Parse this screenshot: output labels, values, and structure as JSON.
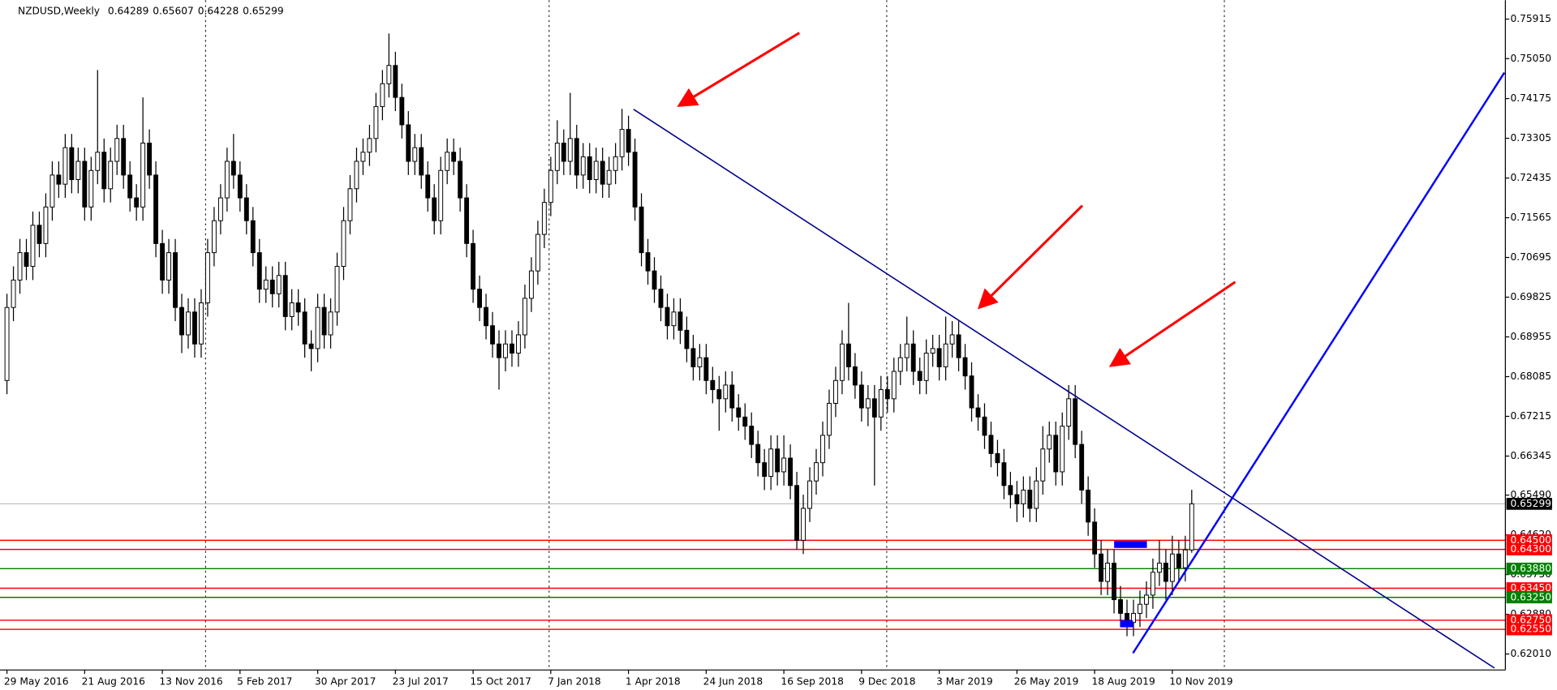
{
  "chart_data": {
    "type": "candlestick",
    "symbol": "NZDUSD,Weekly",
    "categories": [
      "29 May 2016",
      null,
      null,
      null,
      null,
      null,
      null,
      null,
      null,
      null,
      null,
      null,
      "21 Aug 2016",
      null,
      null,
      null,
      null,
      null,
      null,
      null,
      null,
      null,
      null,
      null,
      "13 Nov 2016",
      null,
      null,
      null,
      null,
      null,
      null,
      null,
      null,
      null,
      null,
      null,
      "5 Feb 2017",
      null,
      null,
      null,
      null,
      null,
      null,
      null,
      null,
      null,
      null,
      null,
      "30 Apr 2017",
      null,
      null,
      null,
      null,
      null,
      null,
      null,
      null,
      null,
      null,
      null,
      "23 Jul 2017",
      null,
      null,
      null,
      null,
      null,
      null,
      null,
      null,
      null,
      null,
      null,
      "15 Oct 2017",
      null,
      null,
      null,
      null,
      null,
      null,
      null,
      null,
      null,
      null,
      null,
      "7 Jan 2018",
      null,
      null,
      null,
      null,
      null,
      null,
      null,
      null,
      null,
      null,
      null,
      "1 Apr 2018",
      null,
      null,
      null,
      null,
      null,
      null,
      null,
      null,
      null,
      null,
      null,
      "24 Jun 2018",
      null,
      null,
      null,
      null,
      null,
      null,
      null,
      null,
      null,
      null,
      null,
      "16 Sep 2018",
      null,
      null,
      null,
      null,
      null,
      null,
      null,
      null,
      null,
      null,
      null,
      "9 Dec 2018",
      null,
      null,
      null,
      null,
      null,
      null,
      null,
      null,
      null,
      null,
      null,
      "3 Mar 2019",
      null,
      null,
      null,
      null,
      null,
      null,
      null,
      null,
      null,
      null,
      null,
      "26 May 2019",
      null,
      null,
      null,
      null,
      null,
      null,
      null,
      null,
      null,
      null,
      null,
      "18 Aug 2019",
      null,
      null,
      null,
      null,
      null,
      null,
      null,
      null,
      null,
      null,
      null,
      "10 Nov 2019",
      null,
      null,
      null
    ],
    "ohlc": [
      [
        0.68,
        0.699,
        0.677,
        0.696
      ],
      [
        0.696,
        0.705,
        0.693,
        0.702
      ],
      [
        0.702,
        0.711,
        0.699,
        0.708
      ],
      [
        0.708,
        0.711,
        0.702,
        0.705
      ],
      [
        0.705,
        0.717,
        0.702,
        0.714
      ],
      [
        0.714,
        0.717,
        0.707,
        0.71
      ],
      [
        0.71,
        0.721,
        0.707,
        0.718
      ],
      [
        0.718,
        0.728,
        0.715,
        0.725
      ],
      [
        0.725,
        0.728,
        0.72,
        0.723
      ],
      [
        0.723,
        0.734,
        0.72,
        0.731
      ],
      [
        0.731,
        0.734,
        0.721,
        0.724
      ],
      [
        0.724,
        0.731,
        0.721,
        0.728
      ],
      [
        0.728,
        0.731,
        0.715,
        0.718
      ],
      [
        0.718,
        0.729,
        0.715,
        0.726
      ],
      [
        0.726,
        0.748,
        0.723,
        0.73
      ],
      [
        0.73,
        0.733,
        0.719,
        0.722
      ],
      [
        0.722,
        0.731,
        0.719,
        0.728
      ],
      [
        0.728,
        0.736,
        0.725,
        0.733
      ],
      [
        0.733,
        0.736,
        0.722,
        0.725
      ],
      [
        0.725,
        0.728,
        0.717,
        0.72
      ],
      [
        0.72,
        0.723,
        0.715,
        0.718
      ],
      [
        0.718,
        0.742,
        0.715,
        0.732
      ],
      [
        0.732,
        0.735,
        0.722,
        0.725
      ],
      [
        0.725,
        0.728,
        0.707,
        0.71
      ],
      [
        0.71,
        0.713,
        0.699,
        0.702
      ],
      [
        0.702,
        0.711,
        0.699,
        0.708
      ],
      [
        0.708,
        0.711,
        0.693,
        0.696
      ],
      [
        0.696,
        0.699,
        0.686,
        0.69
      ],
      [
        0.69,
        0.698,
        0.687,
        0.695
      ],
      [
        0.695,
        0.698,
        0.685,
        0.688
      ],
      [
        0.688,
        0.7,
        0.685,
        0.697
      ],
      [
        0.697,
        0.711,
        0.694,
        0.708
      ],
      [
        0.708,
        0.718,
        0.705,
        0.715
      ],
      [
        0.715,
        0.723,
        0.712,
        0.72
      ],
      [
        0.72,
        0.731,
        0.717,
        0.728
      ],
      [
        0.728,
        0.734,
        0.722,
        0.725
      ],
      [
        0.725,
        0.728,
        0.717,
        0.72
      ],
      [
        0.72,
        0.723,
        0.712,
        0.715
      ],
      [
        0.715,
        0.718,
        0.705,
        0.708
      ],
      [
        0.708,
        0.711,
        0.697,
        0.7
      ],
      [
        0.7,
        0.705,
        0.697,
        0.702
      ],
      [
        0.702,
        0.705,
        0.696,
        0.699
      ],
      [
        0.699,
        0.706,
        0.696,
        0.703
      ],
      [
        0.703,
        0.706,
        0.691,
        0.694
      ],
      [
        0.694,
        0.7,
        0.691,
        0.697
      ],
      [
        0.697,
        0.7,
        0.692,
        0.695
      ],
      [
        0.695,
        0.698,
        0.685,
        0.688
      ],
      [
        0.688,
        0.691,
        0.682,
        0.687
      ],
      [
        0.687,
        0.699,
        0.684,
        0.696
      ],
      [
        0.696,
        0.699,
        0.687,
        0.69
      ],
      [
        0.69,
        0.698,
        0.687,
        0.695
      ],
      [
        0.695,
        0.708,
        0.692,
        0.705
      ],
      [
        0.705,
        0.718,
        0.702,
        0.715
      ],
      [
        0.715,
        0.725,
        0.712,
        0.722
      ],
      [
        0.722,
        0.731,
        0.719,
        0.728
      ],
      [
        0.728,
        0.733,
        0.725,
        0.73
      ],
      [
        0.73,
        0.736,
        0.727,
        0.733
      ],
      [
        0.733,
        0.743,
        0.73,
        0.74
      ],
      [
        0.74,
        0.748,
        0.737,
        0.745
      ],
      [
        0.745,
        0.756,
        0.742,
        0.749
      ],
      [
        0.749,
        0.752,
        0.739,
        0.742
      ],
      [
        0.742,
        0.745,
        0.733,
        0.736
      ],
      [
        0.736,
        0.739,
        0.725,
        0.728
      ],
      [
        0.728,
        0.734,
        0.725,
        0.731
      ],
      [
        0.731,
        0.734,
        0.722,
        0.725
      ],
      [
        0.725,
        0.728,
        0.717,
        0.72
      ],
      [
        0.72,
        0.723,
        0.712,
        0.715
      ],
      [
        0.715,
        0.729,
        0.712,
        0.726
      ],
      [
        0.726,
        0.733,
        0.723,
        0.73
      ],
      [
        0.73,
        0.733,
        0.725,
        0.728
      ],
      [
        0.728,
        0.731,
        0.717,
        0.72
      ],
      [
        0.72,
        0.723,
        0.707,
        0.71
      ],
      [
        0.71,
        0.713,
        0.697,
        0.7
      ],
      [
        0.7,
        0.703,
        0.693,
        0.696
      ],
      [
        0.696,
        0.699,
        0.689,
        0.692
      ],
      [
        0.692,
        0.695,
        0.685,
        0.688
      ],
      [
        0.688,
        0.691,
        0.678,
        0.685
      ],
      [
        0.685,
        0.691,
        0.682,
        0.688
      ],
      [
        0.688,
        0.691,
        0.683,
        0.686
      ],
      [
        0.686,
        0.693,
        0.683,
        0.69
      ],
      [
        0.69,
        0.701,
        0.687,
        0.698
      ],
      [
        0.698,
        0.707,
        0.695,
        0.704
      ],
      [
        0.704,
        0.715,
        0.701,
        0.712
      ],
      [
        0.712,
        0.722,
        0.709,
        0.719
      ],
      [
        0.719,
        0.729,
        0.716,
        0.726
      ],
      [
        0.726,
        0.737,
        0.723,
        0.732
      ],
      [
        0.732,
        0.735,
        0.725,
        0.728
      ],
      [
        0.728,
        0.743,
        0.725,
        0.733
      ],
      [
        0.733,
        0.736,
        0.722,
        0.725
      ],
      [
        0.725,
        0.732,
        0.722,
        0.729
      ],
      [
        0.729,
        0.732,
        0.721,
        0.724
      ],
      [
        0.724,
        0.731,
        0.721,
        0.728
      ],
      [
        0.728,
        0.731,
        0.72,
        0.723
      ],
      [
        0.723,
        0.729,
        0.72,
        0.726
      ],
      [
        0.726,
        0.732,
        0.723,
        0.729
      ],
      [
        0.729,
        0.7395,
        0.726,
        0.735
      ],
      [
        0.735,
        0.738,
        0.727,
        0.73
      ],
      [
        0.73,
        0.733,
        0.715,
        0.718
      ],
      [
        0.718,
        0.721,
        0.705,
        0.708
      ],
      [
        0.708,
        0.711,
        0.701,
        0.704
      ],
      [
        0.704,
        0.707,
        0.697,
        0.7
      ],
      [
        0.7,
        0.703,
        0.693,
        0.696
      ],
      [
        0.696,
        0.699,
        0.689,
        0.692
      ],
      [
        0.692,
        0.698,
        0.689,
        0.695
      ],
      [
        0.695,
        0.698,
        0.688,
        0.691
      ],
      [
        0.691,
        0.694,
        0.684,
        0.687
      ],
      [
        0.687,
        0.69,
        0.68,
        0.683
      ],
      [
        0.683,
        0.688,
        0.68,
        0.685
      ],
      [
        0.685,
        0.688,
        0.677,
        0.68
      ],
      [
        0.68,
        0.683,
        0.675,
        0.678
      ],
      [
        0.678,
        0.681,
        0.669,
        0.676
      ],
      [
        0.676,
        0.682,
        0.673,
        0.679
      ],
      [
        0.679,
        0.682,
        0.671,
        0.674
      ],
      [
        0.674,
        0.677,
        0.669,
        0.672
      ],
      [
        0.672,
        0.675,
        0.667,
        0.67
      ],
      [
        0.67,
        0.673,
        0.663,
        0.666
      ],
      [
        0.666,
        0.669,
        0.659,
        0.662
      ],
      [
        0.662,
        0.665,
        0.656,
        0.659
      ],
      [
        0.659,
        0.668,
        0.656,
        0.665
      ],
      [
        0.665,
        0.668,
        0.657,
        0.66
      ],
      [
        0.66,
        0.668,
        0.657,
        0.663
      ],
      [
        0.663,
        0.666,
        0.654,
        0.657
      ],
      [
        0.657,
        0.66,
        0.643,
        0.645
      ],
      [
        0.645,
        0.655,
        0.642,
        0.652
      ],
      [
        0.652,
        0.661,
        0.649,
        0.658
      ],
      [
        0.658,
        0.665,
        0.655,
        0.662
      ],
      [
        0.662,
        0.671,
        0.659,
        0.668
      ],
      [
        0.668,
        0.678,
        0.665,
        0.675
      ],
      [
        0.675,
        0.683,
        0.672,
        0.68
      ],
      [
        0.68,
        0.691,
        0.677,
        0.688
      ],
      [
        0.688,
        0.697,
        0.68,
        0.683
      ],
      [
        0.683,
        0.686,
        0.676,
        0.679
      ],
      [
        0.679,
        0.682,
        0.671,
        0.674
      ],
      [
        0.674,
        0.679,
        0.67,
        0.676
      ],
      [
        0.676,
        0.679,
        0.657,
        0.672
      ],
      [
        0.672,
        0.681,
        0.669,
        0.678
      ],
      [
        0.678,
        0.681,
        0.673,
        0.676
      ],
      [
        0.676,
        0.685,
        0.673,
        0.682
      ],
      [
        0.682,
        0.688,
        0.679,
        0.685
      ],
      [
        0.685,
        0.694,
        0.682,
        0.688
      ],
      [
        0.688,
        0.691,
        0.679,
        0.682
      ],
      [
        0.682,
        0.685,
        0.677,
        0.68
      ],
      [
        0.68,
        0.689,
        0.677,
        0.686
      ],
      [
        0.686,
        0.69,
        0.683,
        0.687
      ],
      [
        0.687,
        0.69,
        0.68,
        0.683
      ],
      [
        0.683,
        0.694,
        0.68,
        0.688
      ],
      [
        0.688,
        0.693,
        0.685,
        0.69
      ],
      [
        0.69,
        0.693,
        0.682,
        0.685
      ],
      [
        0.685,
        0.688,
        0.678,
        0.681
      ],
      [
        0.681,
        0.684,
        0.671,
        0.674
      ],
      [
        0.674,
        0.677,
        0.669,
        0.672
      ],
      [
        0.672,
        0.675,
        0.665,
        0.668
      ],
      [
        0.668,
        0.671,
        0.661,
        0.664
      ],
      [
        0.664,
        0.667,
        0.659,
        0.662
      ],
      [
        0.662,
        0.665,
        0.654,
        0.657
      ],
      [
        0.657,
        0.66,
        0.652,
        0.655
      ],
      [
        0.655,
        0.658,
        0.649,
        0.653
      ],
      [
        0.653,
        0.659,
        0.65,
        0.656
      ],
      [
        0.656,
        0.659,
        0.649,
        0.652
      ],
      [
        0.652,
        0.661,
        0.649,
        0.658
      ],
      [
        0.658,
        0.67,
        0.655,
        0.665
      ],
      [
        0.665,
        0.671,
        0.662,
        0.668
      ],
      [
        0.668,
        0.671,
        0.657,
        0.66
      ],
      [
        0.66,
        0.673,
        0.657,
        0.67
      ],
      [
        0.67,
        0.679,
        0.667,
        0.676
      ],
      [
        0.676,
        0.679,
        0.663,
        0.666
      ],
      [
        0.666,
        0.669,
        0.653,
        0.656
      ],
      [
        0.656,
        0.659,
        0.646,
        0.649
      ],
      [
        0.649,
        0.652,
        0.639,
        0.642
      ],
      [
        0.642,
        0.645,
        0.633,
        0.636
      ],
      [
        0.636,
        0.643,
        0.633,
        0.64
      ],
      [
        0.64,
        0.643,
        0.629,
        0.632
      ],
      [
        0.632,
        0.635,
        0.626,
        0.629
      ],
      [
        0.629,
        0.632,
        0.624,
        0.627
      ],
      [
        0.627,
        0.632,
        0.624,
        0.629
      ],
      [
        0.629,
        0.634,
        0.626,
        0.631
      ],
      [
        0.631,
        0.636,
        0.628,
        0.633
      ],
      [
        0.633,
        0.641,
        0.63,
        0.638
      ],
      [
        0.638,
        0.645,
        0.635,
        0.64
      ],
      [
        0.64,
        0.643,
        0.632,
        0.636
      ],
      [
        0.636,
        0.646,
        0.633,
        0.642
      ],
      [
        0.642,
        0.645,
        0.636,
        0.639
      ],
      [
        0.639,
        0.646,
        0.636,
        0.6429
      ],
      [
        0.64289,
        0.65607,
        0.64228,
        0.65299
      ]
    ],
    "ylim": [
      0.6166,
      0.7633
    ],
    "yticks": [
      {
        "value": 0.75915,
        "label": "0.75915"
      },
      {
        "value": 0.7505,
        "label": "0.75050"
      },
      {
        "value": 0.74175,
        "label": "0.74175"
      },
      {
        "value": 0.73305,
        "label": "0.73305"
      },
      {
        "value": 0.72435,
        "label": "0.72435"
      },
      {
        "value": 0.71565,
        "label": "0.71565"
      },
      {
        "value": 0.70695,
        "label": "0.70695"
      },
      {
        "value": 0.69825,
        "label": "0.69825"
      },
      {
        "value": 0.68955,
        "label": "0.68955"
      },
      {
        "value": 0.68085,
        "label": "0.68085"
      },
      {
        "value": 0.67215,
        "label": "0.67215"
      },
      {
        "value": 0.66345,
        "label": "0.66345"
      },
      {
        "value": 0.6549,
        "label": "0.65490"
      },
      {
        "value": 0.6462,
        "label": "0.64620"
      },
      {
        "value": 0.6375,
        "label": "0.63750"
      },
      {
        "value": 0.6288,
        "label": "0.62880"
      },
      {
        "value": 0.6201,
        "label": "0.62010"
      }
    ],
    "levels": [
      {
        "value": 0.645,
        "label": "0.64500",
        "color": "#ff0000"
      },
      {
        "value": 0.643,
        "label": "0.64300",
        "color": "#ff0000"
      },
      {
        "value": 0.6388,
        "label": "0.63880",
        "color": "#008000"
      },
      {
        "value": 0.6345,
        "label": "0.63450",
        "color": "#ff0000"
      },
      {
        "value": 0.6325,
        "label": "0.63250",
        "color": "#008000"
      },
      {
        "value": 0.6275,
        "label": "0.62750",
        "color": "#ff0000"
      },
      {
        "value": 0.6255,
        "label": "0.62550",
        "color": "#ff0000"
      }
    ],
    "bull_color": "#ffffff",
    "bear_color": "#000000"
  }
}
